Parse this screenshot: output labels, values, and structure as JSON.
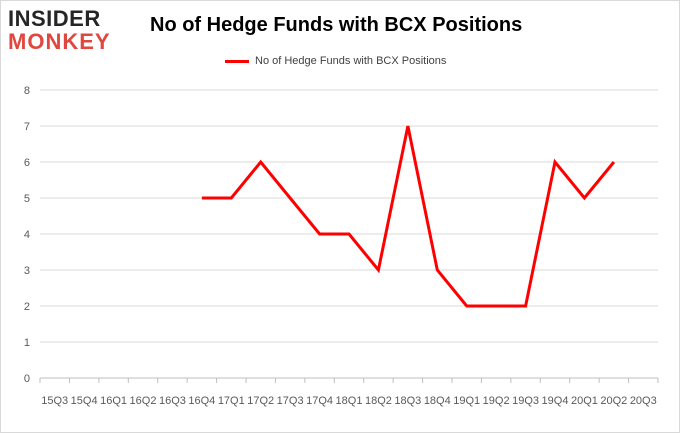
{
  "logo": {
    "line1": "INSIDER",
    "line2": "MONKEY"
  },
  "chart_data": {
    "type": "line",
    "title": "No of Hedge Funds with BCX Positions",
    "xlabel": "",
    "ylabel": "",
    "ylim": [
      0,
      8
    ],
    "yticks": [
      0,
      1,
      2,
      3,
      4,
      5,
      6,
      7,
      8
    ],
    "grid": true,
    "legend_position": "top-center",
    "categories": [
      "15Q3",
      "15Q4",
      "16Q1",
      "16Q2",
      "16Q3",
      "16Q4",
      "17Q1",
      "17Q2",
      "17Q3",
      "17Q4",
      "18Q1",
      "18Q2",
      "18Q3",
      "18Q4",
      "19Q1",
      "19Q2",
      "19Q3",
      "19Q4",
      "20Q1",
      "20Q2",
      "20Q3"
    ],
    "series": [
      {
        "name": "No of Hedge Funds with BCX Positions",
        "color": "#ff0000",
        "values": [
          null,
          null,
          null,
          null,
          null,
          5,
          5,
          6,
          5,
          4,
          4,
          3,
          7,
          3,
          2,
          2,
          2,
          6,
          5,
          6,
          null
        ]
      }
    ]
  }
}
